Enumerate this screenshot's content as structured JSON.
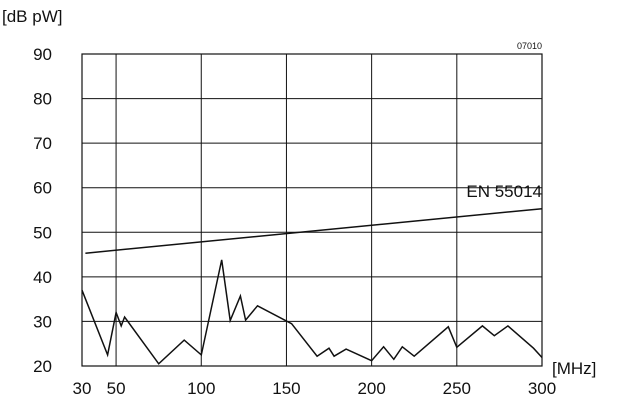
{
  "chart_data": {
    "type": "line",
    "ylabel": "[dB pW]",
    "xlabel": "[MHz]",
    "figure_code": "07010",
    "xlim": [
      30,
      300
    ],
    "ylim": [
      20,
      90
    ],
    "x_ticks": [
      30,
      50,
      100,
      150,
      200,
      250,
      300
    ],
    "y_ticks": [
      20,
      30,
      40,
      50,
      60,
      70,
      80,
      90
    ],
    "x_gridlines": [
      30,
      50,
      100,
      150,
      200,
      250,
      300
    ],
    "grid": true,
    "series": [
      {
        "name": "EN 55014",
        "points": [
          [
            32,
            45.3
          ],
          [
            300,
            55.3
          ]
        ]
      },
      {
        "points": [
          [
            30,
            37
          ],
          [
            45,
            22.5
          ],
          [
            50,
            32
          ],
          [
            53,
            29
          ],
          [
            55,
            31
          ],
          [
            75,
            20.5
          ],
          [
            90,
            25.8
          ],
          [
            100,
            22.5
          ],
          [
            112,
            43.8
          ],
          [
            117,
            30.2
          ],
          [
            123,
            35.7
          ],
          [
            126,
            30.3
          ],
          [
            133,
            33.5
          ],
          [
            153,
            29.5
          ],
          [
            168,
            22.2
          ],
          [
            175,
            24
          ],
          [
            178,
            22.2
          ],
          [
            185,
            23.8
          ],
          [
            200,
            21.2
          ],
          [
            207,
            24.3
          ],
          [
            213,
            21.5
          ],
          [
            218,
            24.3
          ],
          [
            225,
            22.2
          ],
          [
            245,
            28.8
          ],
          [
            250,
            24.2
          ],
          [
            265,
            29
          ],
          [
            272,
            26.8
          ],
          [
            280,
            29
          ],
          [
            295,
            24
          ],
          [
            300,
            21.9
          ]
        ]
      }
    ]
  }
}
